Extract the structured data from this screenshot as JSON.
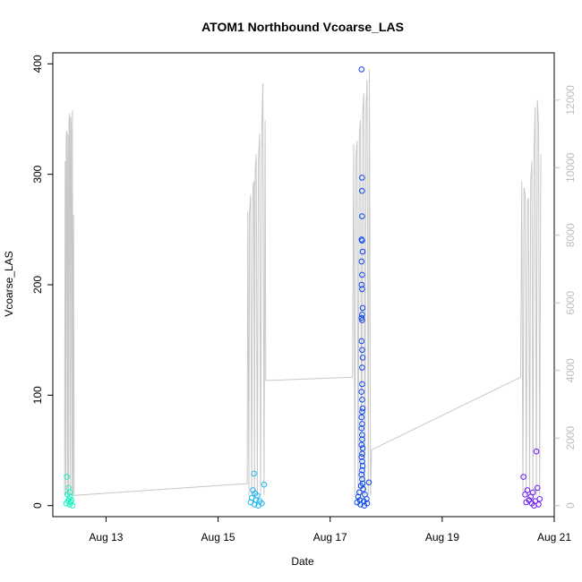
{
  "chart_data": {
    "type": "scatter",
    "title": "ATOM1 Northbound Vcoarse_LAS",
    "xlabel": "Date",
    "ylabel": "Vcoarse_LAS",
    "x_ticks": [
      {
        "label": "Aug 13",
        "value": 13
      },
      {
        "label": "Aug 15",
        "value": 15
      },
      {
        "label": "Aug 17",
        "value": 17
      },
      {
        "label": "Aug 19",
        "value": 19
      },
      {
        "label": "Aug 21",
        "value": 21
      }
    ],
    "xlim": [
      12.05,
      21.0
    ],
    "ylim": [
      -10,
      410
    ],
    "y_ticks": [
      0,
      100,
      200,
      300,
      400
    ],
    "y2_ticks": [
      "0",
      "2000",
      "4000",
      "6000",
      "8000",
      "10000",
      "12000"
    ],
    "y2lim": [
      -327,
      13400
    ],
    "grid": false,
    "legend": "none",
    "colors": {
      "points_day12": "#1af2c0",
      "points_day15": "#19b6ee",
      "points_day17": "#0a44f0",
      "points_day20": "#6a18f2",
      "secondary_line": "#c8c8c8",
      "right_axis": "#bdbdbd"
    },
    "series": [
      {
        "kind": "points",
        "color": "#1af2c0",
        "x": [
          12.3,
          12.33,
          12.35,
          12.31,
          12.36,
          12.34,
          12.38,
          12.32,
          12.37,
          12.29,
          12.35,
          12.4
        ],
        "y": [
          26,
          16,
          12,
          10,
          8,
          6,
          5,
          4,
          3,
          2,
          1,
          0
        ]
      },
      {
        "kind": "points",
        "color": "#19b6ee",
        "x": [
          15.64,
          15.82,
          15.62,
          15.66,
          15.7,
          15.6,
          15.68,
          15.74,
          15.58,
          15.78,
          15.65,
          15.72
        ],
        "y": [
          29,
          19,
          14,
          11,
          9,
          7,
          5,
          4,
          3,
          2,
          1,
          0
        ]
      },
      {
        "kind": "points",
        "color": "#0a44f0",
        "x": [
          17.56,
          17.57,
          17.57,
          17.57,
          17.56,
          17.57,
          17.58,
          17.56,
          17.57,
          17.56,
          17.57,
          17.58,
          17.57,
          17.56,
          17.57,
          17.56,
          17.57,
          17.58,
          17.57,
          17.57,
          17.56,
          17.57,
          17.58,
          17.57,
          17.56,
          17.57,
          17.56,
          17.57,
          17.57,
          17.56,
          17.58,
          17.57,
          17.56,
          17.57,
          17.58,
          17.57,
          17.56,
          17.57,
          17.58,
          17.69,
          17.55,
          17.59,
          17.52,
          17.62,
          17.5,
          17.65,
          17.53,
          17.6,
          17.48,
          17.66,
          17.54,
          17.61
        ],
        "y": [
          395,
          297,
          285,
          262,
          241,
          240,
          230,
          221,
          209,
          200,
          196,
          179,
          173,
          170,
          168,
          149,
          141,
          134,
          125,
          110,
          103,
          96,
          88,
          85,
          80,
          74,
          70,
          64,
          60,
          55,
          52,
          47,
          44,
          40,
          36,
          32,
          28,
          24,
          20,
          21,
          18,
          15,
          12,
          10,
          8,
          6,
          5,
          4,
          3,
          2,
          1,
          0
        ]
      },
      {
        "kind": "points",
        "color": "#6a18f2",
        "x": [
          20.68,
          20.45,
          20.7,
          20.52,
          20.62,
          20.48,
          20.58,
          20.74,
          20.55,
          20.66,
          20.5,
          20.6,
          20.72,
          20.64
        ],
        "y": [
          49,
          26,
          16,
          14,
          12,
          10,
          8,
          6,
          5,
          4,
          3,
          2,
          1,
          0
        ]
      },
      {
        "kind": "line",
        "axis": "right",
        "color": "#c8c8c8",
        "x": [
          12.26,
          12.27,
          12.28,
          12.29,
          12.3,
          12.31,
          12.32,
          12.33,
          12.34,
          12.35,
          12.36,
          12.37,
          12.38,
          12.39,
          12.4,
          12.41,
          12.42,
          12.43,
          15.52,
          15.53,
          15.55,
          15.56,
          15.58,
          15.6,
          15.62,
          15.64,
          15.65,
          15.66,
          15.68,
          15.7,
          15.72,
          15.74,
          15.76,
          15.78,
          15.8,
          15.82,
          15.84,
          15.85,
          17.4,
          17.42,
          17.44,
          17.46,
          17.48,
          17.5,
          17.52,
          17.54,
          17.56,
          17.58,
          17.6,
          17.62,
          17.64,
          17.66,
          17.68,
          17.7,
          17.72,
          17.74,
          20.4,
          20.42,
          20.44,
          20.46,
          20.48,
          20.5,
          20.52,
          20.54,
          20.56,
          20.58,
          20.6,
          20.62,
          20.64,
          20.66,
          20.68,
          20.7,
          20.72,
          20.74,
          20.76
        ],
        "y": [
          300,
          10200,
          300,
          10900,
          11100,
          300,
          11000,
          300,
          11400,
          11600,
          300,
          11500,
          11200,
          300,
          11700,
          300,
          8600,
          300,
          650,
          8700,
          300,
          8600,
          9200,
          300,
          9400,
          9600,
          300,
          9800,
          10400,
          300,
          10200,
          11000,
          300,
          11200,
          12500,
          300,
          11400,
          3700,
          3800,
          10700,
          300,
          10300,
          10800,
          300,
          11000,
          11400,
          300,
          11600,
          12200,
          300,
          11800,
          12600,
          300,
          12900,
          300,
          1650,
          3800,
          9600,
          300,
          9400,
          9200,
          300,
          9000,
          9100,
          300,
          9600,
          10200,
          300,
          10600,
          11800,
          300,
          12000,
          11300,
          300,
          10400
        ]
      }
    ]
  }
}
